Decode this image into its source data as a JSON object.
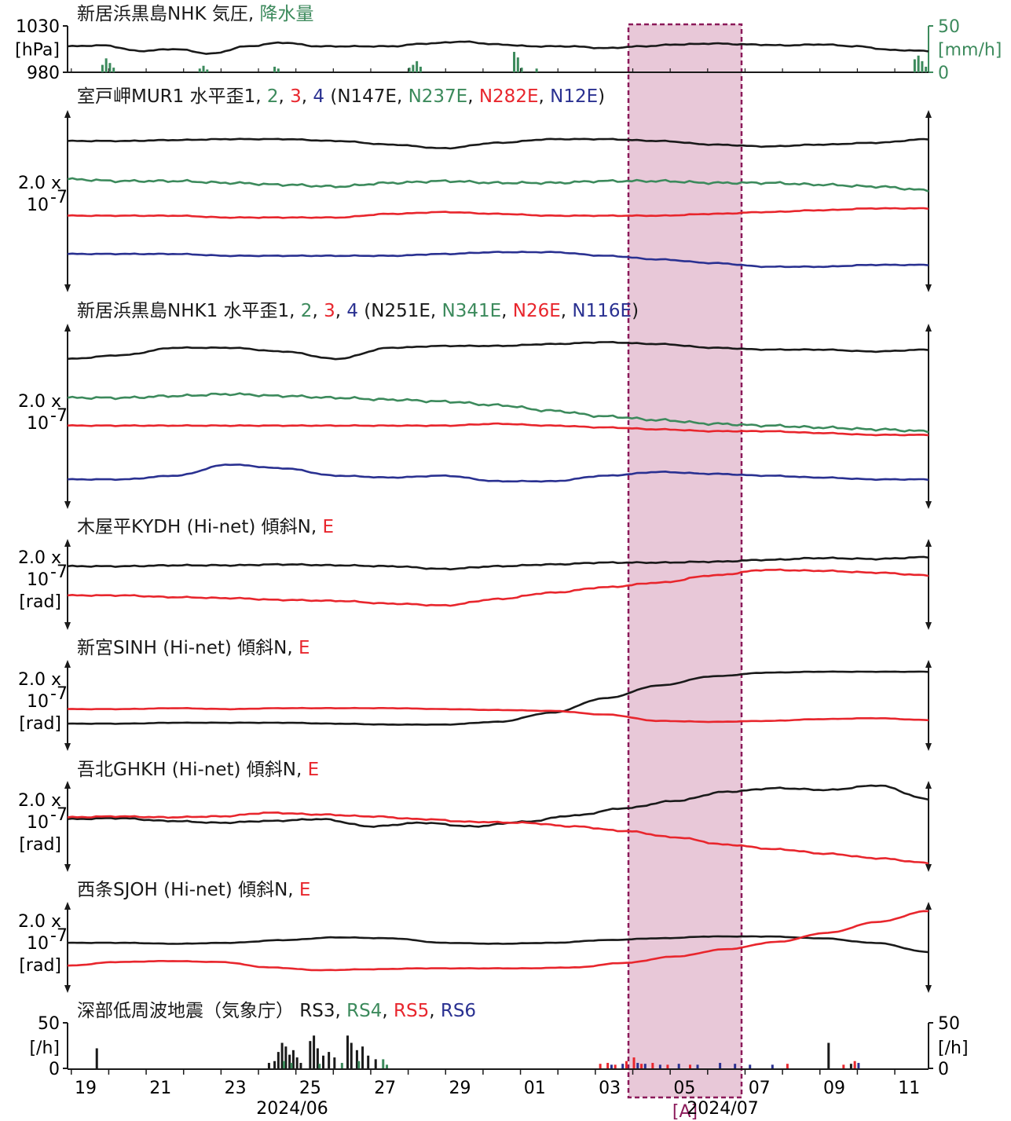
{
  "chart_data": {
    "type": "line",
    "x_start_date": "2024-06-18",
    "x_end_date": "2024-07-11",
    "x_tick_labels": [
      "19",
      "21",
      "23",
      "25",
      "27",
      "29",
      "01",
      "03",
      "05",
      "07",
      "09",
      "11"
    ],
    "month_labels": [
      "2024/06",
      "2024/07"
    ],
    "highlight": {
      "label": "[A]",
      "start": "2024-07-03.5",
      "end": "2024-07-06.5",
      "fill": "#e8c8d8",
      "stroke": "#8b1a5a"
    },
    "colors": {
      "black": "#1a1a1a",
      "green": "#3c8a5c",
      "red": "#e8262d",
      "blue": "#2a3191"
    },
    "panels": [
      {
        "id": "pressure",
        "title_parts": [
          {
            "t": "新居浜黒島NHK 気圧, ",
            "c": "black"
          },
          {
            "t": "降水量",
            "c": "green"
          }
        ],
        "left_ticks": [
          "1030",
          "[hPa]",
          "980"
        ],
        "right_ticks": [
          "50",
          "[mm/h]",
          "0"
        ],
        "ylim": [
          980,
          1030
        ],
        "pressure": [
          1008,
          1009,
          1003,
          1005,
          1000,
          1008,
          1012,
          1008,
          1008,
          1008,
          1011,
          1013,
          1010,
          1008,
          1008,
          1006,
          1008,
          1010,
          1011,
          1010,
          1009,
          1010,
          1008,
          1004,
          1003
        ],
        "rain_y2lim": [
          0,
          50
        ],
        "rain_bars": [
          [
            0.9,
            8
          ],
          [
            1.0,
            15
          ],
          [
            1.1,
            10
          ],
          [
            1.2,
            5
          ],
          [
            3.5,
            4
          ],
          [
            3.6,
            7
          ],
          [
            3.7,
            3
          ],
          [
            5.5,
            6
          ],
          [
            5.6,
            4
          ],
          [
            9.1,
            5
          ],
          [
            9.2,
            8
          ],
          [
            9.3,
            12
          ],
          [
            9.4,
            6
          ],
          [
            11.9,
            22
          ],
          [
            12.0,
            16
          ],
          [
            12.1,
            5
          ],
          [
            12.5,
            4
          ],
          [
            22.6,
            14
          ],
          [
            22.7,
            18
          ],
          [
            22.8,
            12
          ],
          [
            22.9,
            6
          ]
        ]
      },
      {
        "id": "MUR1",
        "title_parts": [
          {
            "t": "室戸岬MUR1 水平歪1, ",
            "c": "black"
          },
          {
            "t": "2",
            "c": "green"
          },
          {
            "t": ", ",
            "c": "black"
          },
          {
            "t": "3",
            "c": "red"
          },
          {
            "t": ", ",
            "c": "black"
          },
          {
            "t": "4",
            "c": "blue"
          },
          {
            "t": " (N147E, ",
            "c": "black"
          },
          {
            "t": "N237E",
            "c": "green"
          },
          {
            "t": ", ",
            "c": "black"
          },
          {
            "t": "N282E",
            "c": "red"
          },
          {
            "t": ", ",
            "c": "black"
          },
          {
            "t": "N12E",
            "c": "blue"
          },
          {
            "t": ")",
            "c": "black"
          }
        ],
        "scale_label": [
          "2.0 x",
          "10",
          "-7",
          ""
        ],
        "ylim": [
          0,
          100
        ],
        "series": [
          {
            "name": "1",
            "color": "black",
            "values": [
              83,
              83,
              83.5,
              84,
              84,
              83,
              81,
              79,
              82,
              84,
              84,
              83,
              81,
              80,
              81,
              82,
              84
            ]
          },
          {
            "name": "2",
            "color": "green",
            "values": [
              62,
              61,
              61,
              60,
              59,
              58,
              60,
              61,
              60,
              60,
              61,
              61,
              60,
              60,
              59,
              58,
              56
            ]
          },
          {
            "name": "3",
            "color": "red",
            "values": [
              42,
              42,
              42,
              41,
              41,
              41,
              43,
              44,
              43,
              42,
              42,
              42,
              43,
              44,
              45,
              46,
              46
            ]
          },
          {
            "name": "4",
            "color": "blue",
            "values": [
              21,
              21,
              21,
              20,
              20,
              20,
              20,
              21,
              22,
              22,
              20,
              18,
              16,
              14,
              14,
              15,
              15
            ]
          }
        ]
      },
      {
        "id": "NHK1",
        "title_parts": [
          {
            "t": "新居浜黒島NHK1 水平歪1, ",
            "c": "black"
          },
          {
            "t": "2",
            "c": "green"
          },
          {
            "t": ", ",
            "c": "black"
          },
          {
            "t": "3",
            "c": "red"
          },
          {
            "t": ", ",
            "c": "black"
          },
          {
            "t": "4",
            "c": "blue"
          },
          {
            "t": " (N251E, ",
            "c": "black"
          },
          {
            "t": "N341E",
            "c": "green"
          },
          {
            "t": ", ",
            "c": "black"
          },
          {
            "t": "N26E",
            "c": "red"
          },
          {
            "t": ", ",
            "c": "black"
          },
          {
            "t": "N116E",
            "c": "blue"
          },
          {
            "t": ")",
            "c": "black"
          }
        ],
        "scale_label": [
          "2.0 x",
          "10",
          "-7",
          ""
        ],
        "ylim": [
          0,
          100
        ],
        "series": [
          {
            "name": "1",
            "color": "black",
            "values": [
              81,
              83,
              87,
              87,
              85,
              81,
              87,
              88,
              88,
              89,
              90,
              89,
              87,
              86,
              86,
              85,
              86
            ]
          },
          {
            "name": "2",
            "color": "green",
            "values": [
              60,
              60,
              61,
              62,
              61,
              60,
              59,
              58,
              56,
              53,
              50,
              48,
              46,
              45,
              44,
              43,
              42
            ]
          },
          {
            "name": "3",
            "color": "red",
            "values": [
              45,
              45,
              45,
              45,
              45,
              45,
              45,
              45,
              46,
              45,
              44,
              43,
              42,
              42,
              41,
              40,
              40
            ]
          },
          {
            "name": "4",
            "color": "blue",
            "values": [
              16,
              16,
              18,
              24,
              22,
              18,
              17,
              18,
              15,
              15,
              18,
              20,
              19,
              18,
              17,
              16,
              16
            ]
          }
        ]
      },
      {
        "id": "KYDH",
        "title_parts": [
          {
            "t": "木屋平KYDH (Hi-net) 傾斜N, ",
            "c": "black"
          },
          {
            "t": "E",
            "c": "red"
          }
        ],
        "scale_label": [
          "2.0 x",
          "10",
          "-7",
          "[rad]"
        ],
        "ylim": [
          0,
          100
        ],
        "series": [
          {
            "name": "N",
            "color": "black",
            "values": [
              70,
              70,
              71,
              71,
              72,
              71,
              70,
              67,
              70,
              72,
              74,
              74,
              75,
              77,
              79,
              78,
              80
            ]
          },
          {
            "name": "E",
            "color": "red",
            "values": [
              38,
              38,
              36,
              35,
              33,
              32,
              29,
              27,
              34,
              41,
              47,
              52,
              60,
              66,
              65,
              63,
              60
            ]
          }
        ]
      },
      {
        "id": "SINH",
        "title_parts": [
          {
            "t": "新宮SINH (Hi-net) 傾斜N, ",
            "c": "black"
          },
          {
            "t": "E",
            "c": "red"
          }
        ],
        "scale_label": [
          "2.0 x",
          "10",
          "-7",
          "[rad]"
        ],
        "ylim": [
          0,
          100
        ],
        "series": [
          {
            "name": "N",
            "color": "black",
            "values": [
              30,
              30,
              31,
              31,
              31,
              30,
              29,
              29,
              32,
              42,
              58,
              72,
              82,
              86,
              87,
              87,
              87
            ]
          },
          {
            "name": "E",
            "color": "red",
            "values": [
              46,
              46,
              47,
              46,
              47,
              47,
              47,
              46,
              45,
              44,
              40,
              33,
              32,
              33,
              35,
              36,
              34
            ]
          }
        ]
      },
      {
        "id": "GHKH",
        "title_parts": [
          {
            "t": "吾北GHKH (Hi-net) 傾斜N, ",
            "c": "black"
          },
          {
            "t": "E",
            "c": "red"
          }
        ],
        "scale_label": [
          "2.0 x",
          "10",
          "-7",
          "[rad]"
        ],
        "ylim": [
          0,
          100
        ],
        "series": [
          {
            "name": "N",
            "color": "black",
            "values": [
              58,
              59,
              56,
              54,
              56,
              58,
              50,
              54,
              50,
              55,
              62,
              70,
              78,
              88,
              92,
              90,
              95,
              80
            ]
          },
          {
            "name": "E",
            "color": "red",
            "values": [
              60,
              61,
              60,
              61,
              65,
              63,
              61,
              58,
              55,
              54,
              50,
              45,
              38,
              30,
              25,
              20,
              15,
              10
            ]
          }
        ]
      },
      {
        "id": "SJOH",
        "title_parts": [
          {
            "t": "西条SJOH (Hi-net) 傾斜N, ",
            "c": "black"
          },
          {
            "t": "E",
            "c": "red"
          }
        ],
        "scale_label": [
          "2.0 x",
          "10",
          "-7",
          "[rad]"
        ],
        "ylim": [
          0,
          100
        ],
        "series": [
          {
            "name": "N",
            "color": "black",
            "values": [
              55,
              55,
              54,
              55,
              58,
              61,
              60,
              55,
              54,
              55,
              58,
              60,
              62,
              62,
              60,
              55,
              45
            ]
          },
          {
            "name": "E",
            "color": "red",
            "values": [
              30,
              34,
              35,
              34,
              28,
              25,
              26,
              27,
              27,
              27,
              28,
              33,
              40,
              48,
              56,
              66,
              78,
              90
            ]
          }
        ]
      },
      {
        "id": "LFE",
        "title_parts": [
          {
            "t": "深部低周波地震（気象庁） RS3, ",
            "c": "black"
          },
          {
            "t": "RS4",
            "c": "green"
          },
          {
            "t": ", ",
            "c": "black"
          },
          {
            "t": "RS5",
            "c": "red"
          },
          {
            "t": ", ",
            "c": "black"
          },
          {
            "t": "RS6",
            "c": "blue"
          }
        ],
        "left_ticks": [
          "50",
          "[/h]",
          "0"
        ],
        "right_ticks": [
          "50",
          "[/h]",
          "0"
        ],
        "ylim": [
          0,
          50
        ],
        "bars_black": [
          [
            0.75,
            22
          ],
          [
            5.35,
            6
          ],
          [
            5.5,
            8
          ],
          [
            5.6,
            18
          ],
          [
            5.7,
            28
          ],
          [
            5.8,
            24
          ],
          [
            5.9,
            15
          ],
          [
            6.0,
            20
          ],
          [
            6.1,
            12
          ],
          [
            6.2,
            6
          ],
          [
            6.45,
            30
          ],
          [
            6.55,
            36
          ],
          [
            6.65,
            22
          ],
          [
            6.8,
            14
          ],
          [
            6.95,
            18
          ],
          [
            7.1,
            12
          ],
          [
            7.45,
            36
          ],
          [
            7.55,
            28
          ],
          [
            7.7,
            20
          ],
          [
            7.85,
            24
          ],
          [
            8.0,
            14
          ],
          [
            8.2,
            10
          ],
          [
            20.3,
            28
          ],
          [
            20.9,
            5
          ]
        ],
        "bars_green": [
          [
            5.75,
            8
          ],
          [
            5.95,
            6
          ],
          [
            6.7,
            5
          ],
          [
            7.3,
            6
          ],
          [
            7.75,
            8
          ],
          [
            8.4,
            10
          ],
          [
            8.5,
            4
          ],
          [
            21.0,
            4
          ]
        ],
        "bars_red": [
          [
            14.2,
            5
          ],
          [
            14.4,
            6
          ],
          [
            14.6,
            4
          ],
          [
            14.9,
            8
          ],
          [
            15.1,
            12
          ],
          [
            15.3,
            5
          ],
          [
            15.6,
            6
          ],
          [
            16.0,
            4
          ],
          [
            16.6,
            4
          ],
          [
            19.2,
            5
          ],
          [
            20.7,
            4
          ],
          [
            21.0,
            8
          ]
        ],
        "bars_blue": [
          [
            14.5,
            4
          ],
          [
            14.8,
            5
          ],
          [
            15.2,
            6
          ],
          [
            15.4,
            5
          ],
          [
            15.8,
            4
          ],
          [
            16.3,
            5
          ],
          [
            16.8,
            4
          ],
          [
            17.4,
            6
          ],
          [
            17.8,
            5
          ],
          [
            18.2,
            4
          ],
          [
            18.8,
            4
          ],
          [
            21.1,
            6
          ]
        ]
      }
    ]
  }
}
